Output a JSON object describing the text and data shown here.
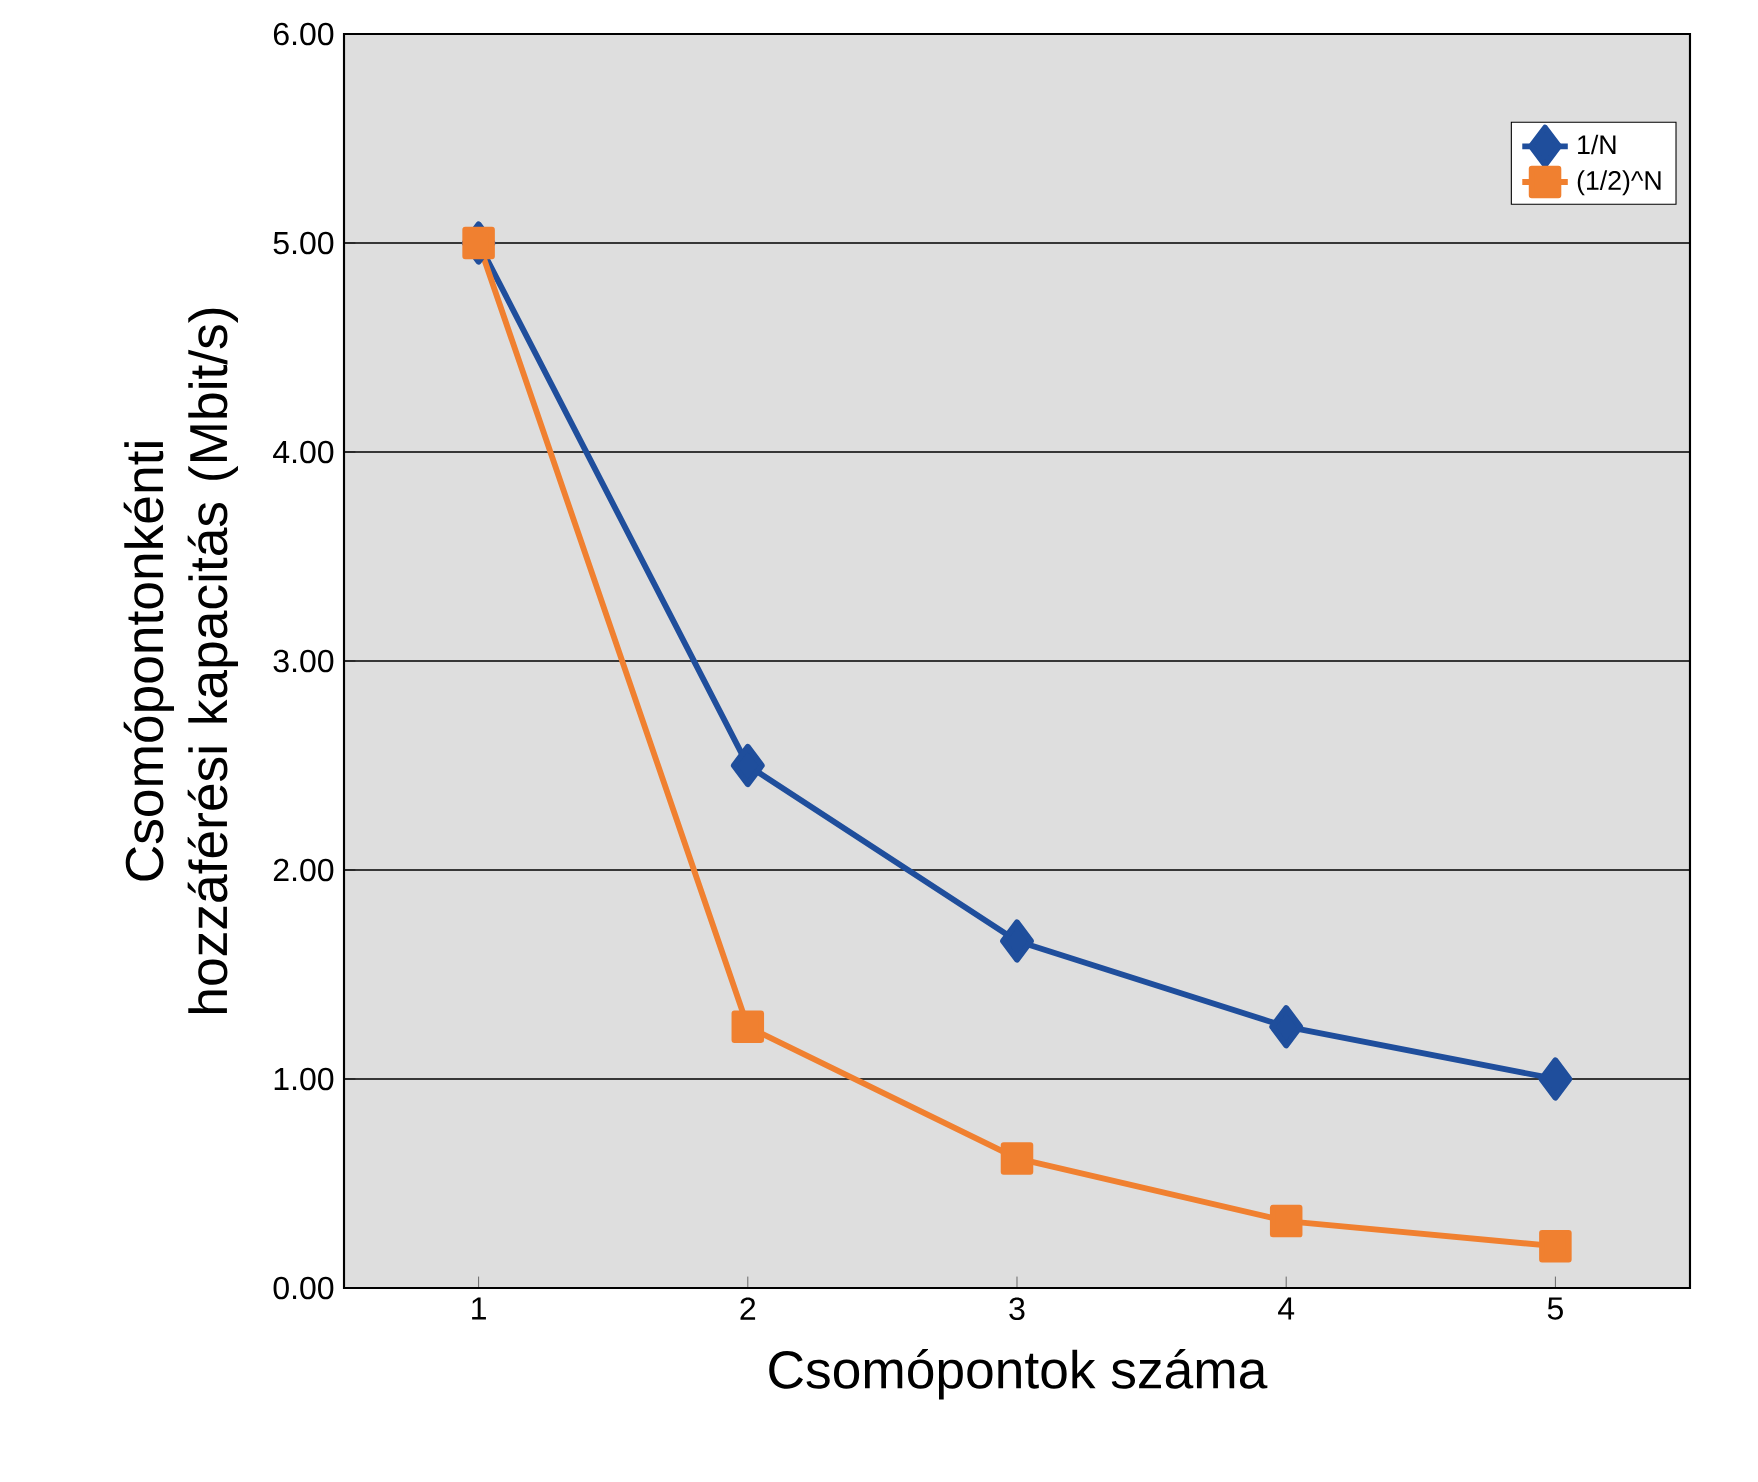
{
  "chart_data": {
    "type": "line",
    "xlabel": "Csomópontok száma",
    "ylabel": "Csomópontonkénti hozzáférési kapacitás (Mbit/s)",
    "categories": [
      "1",
      "2",
      "3",
      "4",
      "5"
    ],
    "series": [
      {
        "name": "1/N",
        "color": "#1f4e9c",
        "marker": "diamond",
        "values": [
          5.0,
          2.5,
          1.66,
          1.25,
          1.0
        ]
      },
      {
        "name": "(1/2)^N",
        "color": "#f08030",
        "marker": "square",
        "values": [
          5.0,
          1.25,
          0.62,
          0.32,
          0.2
        ]
      }
    ],
    "ylim": [
      0,
      6
    ],
    "yticks": [
      {
        "value": 0,
        "label": "0.00"
      },
      {
        "value": 1,
        "label": "1.00"
      },
      {
        "value": 2,
        "label": "2.00"
      },
      {
        "value": 3,
        "label": "3.00"
      },
      {
        "value": 4,
        "label": "4.00"
      },
      {
        "value": 5,
        "label": "5.00"
      },
      {
        "value": 6,
        "label": "6.00"
      }
    ],
    "grid": "y",
    "legend": "top right"
  }
}
